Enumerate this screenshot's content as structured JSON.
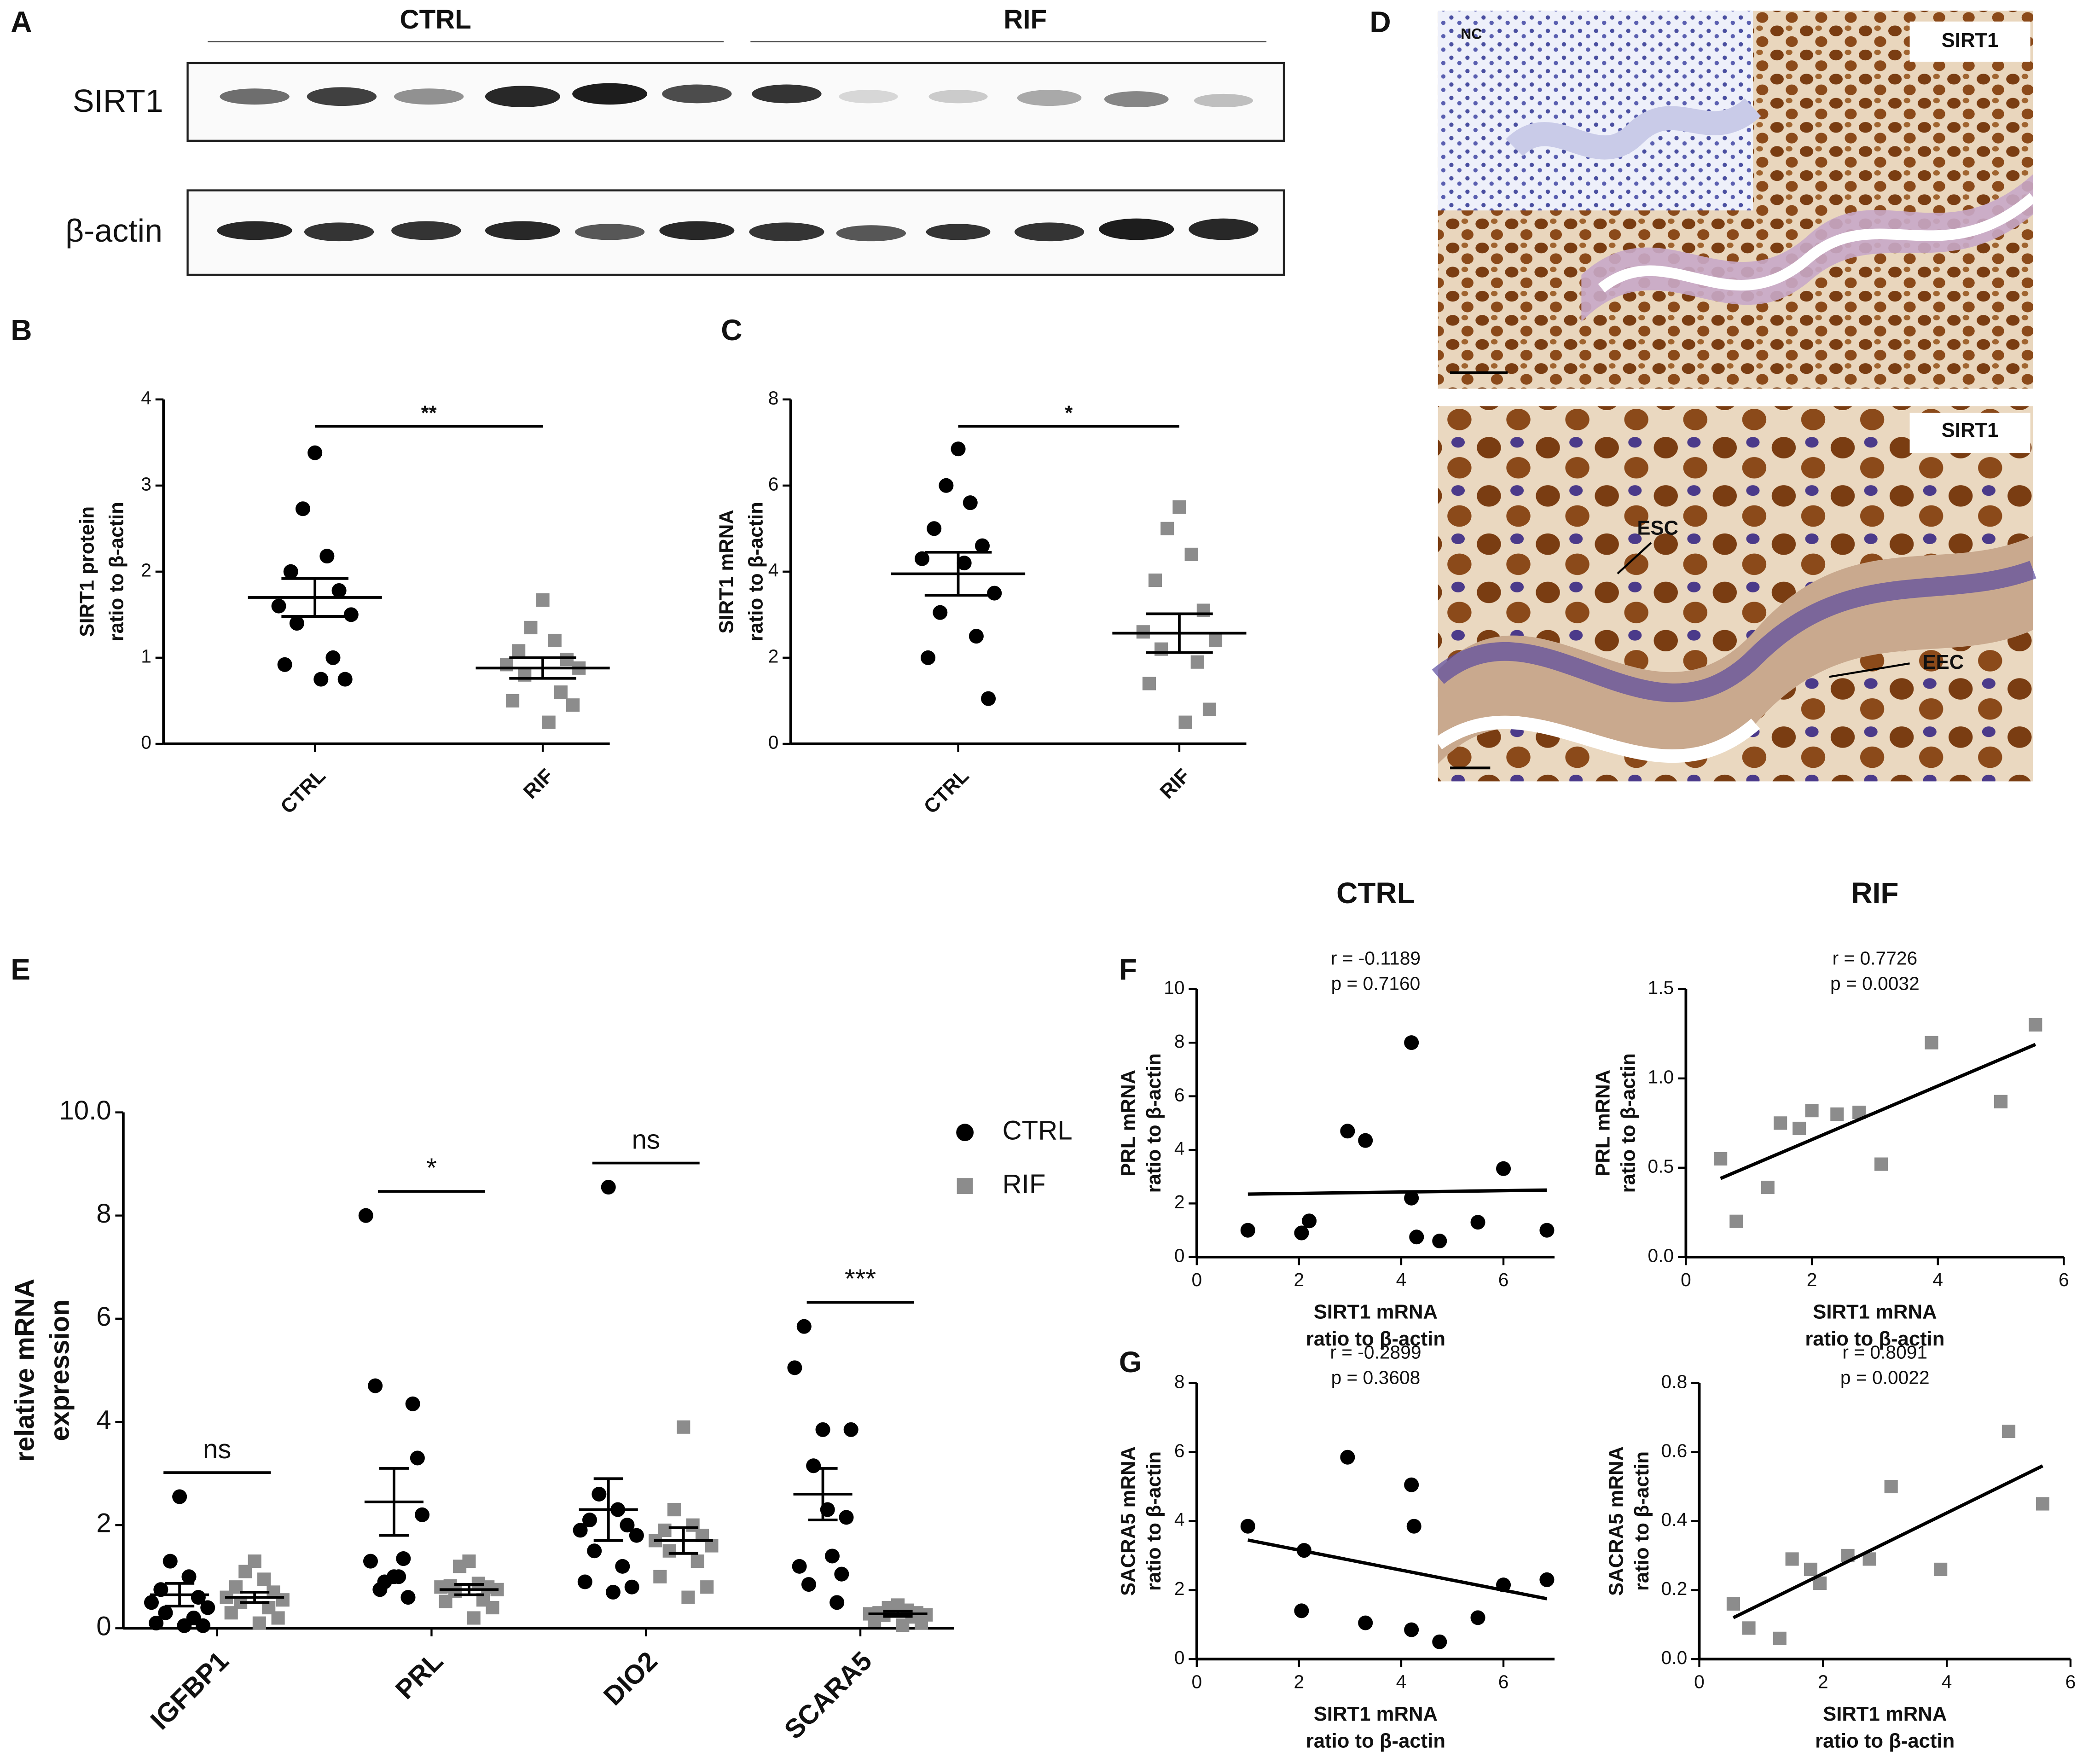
{
  "figure": {
    "panel_labels": [
      "A",
      "B",
      "C",
      "D",
      "E",
      "F",
      "G"
    ],
    "blot": {
      "groups": [
        "CTRL",
        "RIF"
      ],
      "rows": [
        "SIRT1",
        "β-actin"
      ]
    },
    "histology": {
      "labels": [
        "NC",
        "SIRT1",
        "SIRT1",
        "ESC",
        "EEC"
      ]
    }
  },
  "chart_data": [
    {
      "type": "dot",
      "categories": [
        "CTRL",
        "RIF"
      ],
      "ylabel": [
        "SIRT1 protein",
        "ratio to β-actin"
      ],
      "values": [
        [
          3.38,
          2.73,
          2.18,
          2.0,
          1.78,
          1.6,
          1.5,
          1.4,
          1.0,
          0.92,
          0.75,
          0.75
        ],
        [
          1.67,
          1.35,
          1.2,
          1.08,
          0.98,
          0.92,
          0.88,
          0.8,
          0.6,
          0.5,
          0.45,
          0.25
        ]
      ],
      "mean": [
        1.7,
        0.88
      ],
      "sem": [
        0.22,
        0.12
      ],
      "colors": [
        "#000000",
        "#8c8c8c"
      ],
      "markers": [
        "circle",
        "square"
      ],
      "annotation": "**",
      "ylim": [
        0,
        4
      ],
      "yticks": [
        0,
        1,
        2,
        3,
        4
      ]
    },
    {
      "type": "dot",
      "categories": [
        "CTRL",
        "RIF"
      ],
      "ylabel": [
        "SIRT1 mRNA",
        "ratio to β-actin"
      ],
      "values": [
        [
          6.85,
          6.0,
          5.6,
          5.0,
          4.6,
          4.3,
          3.5,
          3.05,
          2.5,
          2.0,
          1.05,
          4.2
        ],
        [
          5.5,
          5.0,
          4.4,
          3.8,
          3.1,
          2.6,
          2.4,
          2.2,
          1.9,
          1.4,
          0.8,
          0.5
        ]
      ],
      "mean": [
        3.95,
        2.57
      ],
      "sem": [
        0.5,
        0.45
      ],
      "colors": [
        "#000000",
        "#8c8c8c"
      ],
      "markers": [
        "circle",
        "square"
      ],
      "annotation": "*",
      "ylim": [
        0,
        8
      ],
      "yticks": [
        0,
        2,
        4,
        6,
        8
      ]
    },
    {
      "type": "dot",
      "categories": [
        "IGFBP1",
        "PRL",
        "DIO2",
        "SCARA5"
      ],
      "ylabel": [
        "relative mRNA",
        "expression"
      ],
      "series": [
        {
          "name": "CTRL",
          "color": "#000000",
          "marker": "circle",
          "values": [
            [
              2.55,
              1.3,
              1.0,
              0.75,
              0.6,
              0.5,
              0.4,
              0.3,
              0.2,
              0.1,
              0.05,
              0.05
            ],
            [
              1.0,
              0.9,
              1.35,
              4.7,
              4.35,
              8.0,
              2.2,
              0.75,
              0.6,
              1.3,
              3.3,
              1.0
            ],
            [
              8.55,
              2.6,
              2.3,
              2.1,
              2.0,
              1.9,
              1.8,
              1.5,
              1.2,
              0.9,
              0.8,
              0.7
            ],
            [
              3.85,
              3.15,
              1.4,
              5.85,
              1.05,
              5.05,
              3.85,
              0.85,
              0.5,
              1.2,
              2.15,
              2.3
            ]
          ],
          "mean": [
            0.65,
            2.45,
            2.3,
            2.6
          ],
          "sem": [
            0.22,
            0.65,
            0.6,
            0.5
          ]
        },
        {
          "name": "RIF",
          "color": "#8c8c8c",
          "marker": "square",
          "values": [
            [
              1.3,
              1.1,
              0.95,
              0.8,
              0.7,
              0.6,
              0.55,
              0.5,
              0.4,
              0.3,
              0.2,
              0.1
            ],
            [
              1.3,
              1.2,
              0.87,
              0.82,
              0.8,
              0.8,
              0.75,
              0.72,
              0.55,
              0.52,
              0.4,
              0.2
            ],
            [
              3.9,
              2.3,
              2.0,
              1.9,
              1.8,
              1.7,
              1.6,
              1.5,
              1.3,
              1.0,
              0.8,
              0.6
            ],
            [
              0.45,
              0.4,
              0.35,
              0.3,
              0.3,
              0.28,
              0.26,
              0.25,
              0.22,
              0.16,
              0.1,
              0.06
            ]
          ],
          "mean": [
            0.6,
            0.75,
            1.7,
            0.28
          ],
          "sem": [
            0.1,
            0.1,
            0.25,
            0.05
          ]
        }
      ],
      "annotations": [
        "ns",
        "*",
        "ns",
        "***"
      ],
      "ylim": [
        0,
        10
      ],
      "yticks": [
        0,
        2,
        4,
        6,
        8,
        {
          "value": 10,
          "label": "10.0"
        }
      ]
    },
    {
      "type": "scatter",
      "title": "CTRL",
      "xlabel": [
        "SIRT1 mRNA",
        "ratio to β-actin"
      ],
      "ylabel": [
        "PRL mRNA",
        "ratio to β-actin"
      ],
      "annotations": [
        "r = -0.1189",
        "p = 0.7160"
      ],
      "color": "#000000",
      "marker": "circle",
      "x": [
        1.0,
        2.05,
        2.2,
        2.95,
        3.3,
        4.2,
        4.2,
        4.3,
        4.75,
        5.5,
        6.0,
        6.85
      ],
      "y": [
        1.0,
        0.9,
        1.35,
        4.7,
        4.35,
        8.0,
        2.2,
        0.75,
        0.6,
        1.3,
        3.3,
        1.0
      ],
      "fit": {
        "x": [
          1.0,
          6.85
        ],
        "y": [
          2.35,
          2.5
        ]
      },
      "xlim": [
        0,
        7
      ],
      "xticks": [
        0,
        2,
        4,
        6
      ],
      "ylim": [
        0,
        10
      ],
      "yticks": [
        0,
        2,
        4,
        6,
        8,
        10
      ]
    },
    {
      "type": "scatter",
      "title": "RIF",
      "xlabel": [
        "SIRT1 mRNA",
        "ratio to β-actin"
      ],
      "ylabel": [
        "PRL mRNA",
        "ratio to β-actin"
      ],
      "annotations": [
        "r = 0.7726",
        "p = 0.0032"
      ],
      "color": "#8c8c8c",
      "marker": "square",
      "x": [
        0.55,
        0.8,
        1.3,
        1.5,
        1.8,
        2.0,
        2.4,
        2.75,
        3.1,
        3.9,
        5.0,
        5.55
      ],
      "y": [
        0.55,
        0.2,
        0.39,
        0.75,
        0.72,
        0.82,
        0.8,
        0.81,
        0.52,
        1.2,
        0.87,
        1.3
      ],
      "fit": {
        "x": [
          0.55,
          5.55
        ],
        "y": [
          0.44,
          1.19
        ]
      },
      "xlim": [
        0,
        6
      ],
      "xticks": [
        0,
        2,
        4,
        6
      ],
      "ylim": [
        0,
        1.5
      ],
      "yticks": [
        {
          "value": 0,
          "label": "0.0"
        },
        0.5,
        {
          "value": 1,
          "label": "1.0"
        },
        1.5
      ]
    },
    {
      "type": "scatter",
      "xlabel": [
        "SIRT1 mRNA",
        "ratio to β-actin"
      ],
      "ylabel": [
        "SACRA5 mRNA",
        "ratio to β-actin"
      ],
      "annotations": [
        "r = -0.2899",
        "p = 0.3608"
      ],
      "color": "#000000",
      "marker": "circle",
      "x": [
        1.0,
        2.1,
        2.05,
        2.95,
        3.3,
        4.2,
        4.25,
        4.2,
        4.75,
        5.5,
        6.0,
        6.85
      ],
      "y": [
        3.85,
        3.15,
        1.4,
        5.85,
        1.05,
        5.05,
        3.85,
        0.85,
        0.5,
        1.2,
        2.15,
        2.3
      ],
      "fit": {
        "x": [
          1.0,
          6.85
        ],
        "y": [
          3.45,
          1.75
        ]
      },
      "xlim": [
        0,
        7
      ],
      "xticks": [
        0,
        2,
        4,
        6
      ],
      "ylim": [
        0,
        8
      ],
      "yticks": [
        0,
        2,
        4,
        6,
        8
      ]
    },
    {
      "type": "scatter",
      "xlabel": [
        "SIRT1 mRNA",
        "ratio to β-actin"
      ],
      "ylabel": [
        "SACRA5 mRNA",
        "ratio to β-actin"
      ],
      "annotations": [
        "r = 0.8091",
        "p = 0.0022"
      ],
      "color": "#8c8c8c",
      "marker": "square",
      "x": [
        0.55,
        0.8,
        1.3,
        1.5,
        1.8,
        1.95,
        2.4,
        2.75,
        3.1,
        3.9,
        5.0,
        5.55
      ],
      "y": [
        0.16,
        0.09,
        0.06,
        0.29,
        0.26,
        0.22,
        0.3,
        0.29,
        0.5,
        0.26,
        0.66,
        0.45
      ],
      "fit": {
        "x": [
          0.55,
          5.55
        ],
        "y": [
          0.12,
          0.56
        ]
      },
      "xlim": [
        0,
        6
      ],
      "xticks": [
        0,
        2,
        4,
        6
      ],
      "ylim": [
        0,
        0.8
      ],
      "yticks": [
        {
          "value": 0,
          "label": "0.0"
        },
        0.2,
        0.4,
        0.6,
        0.8
      ]
    }
  ]
}
